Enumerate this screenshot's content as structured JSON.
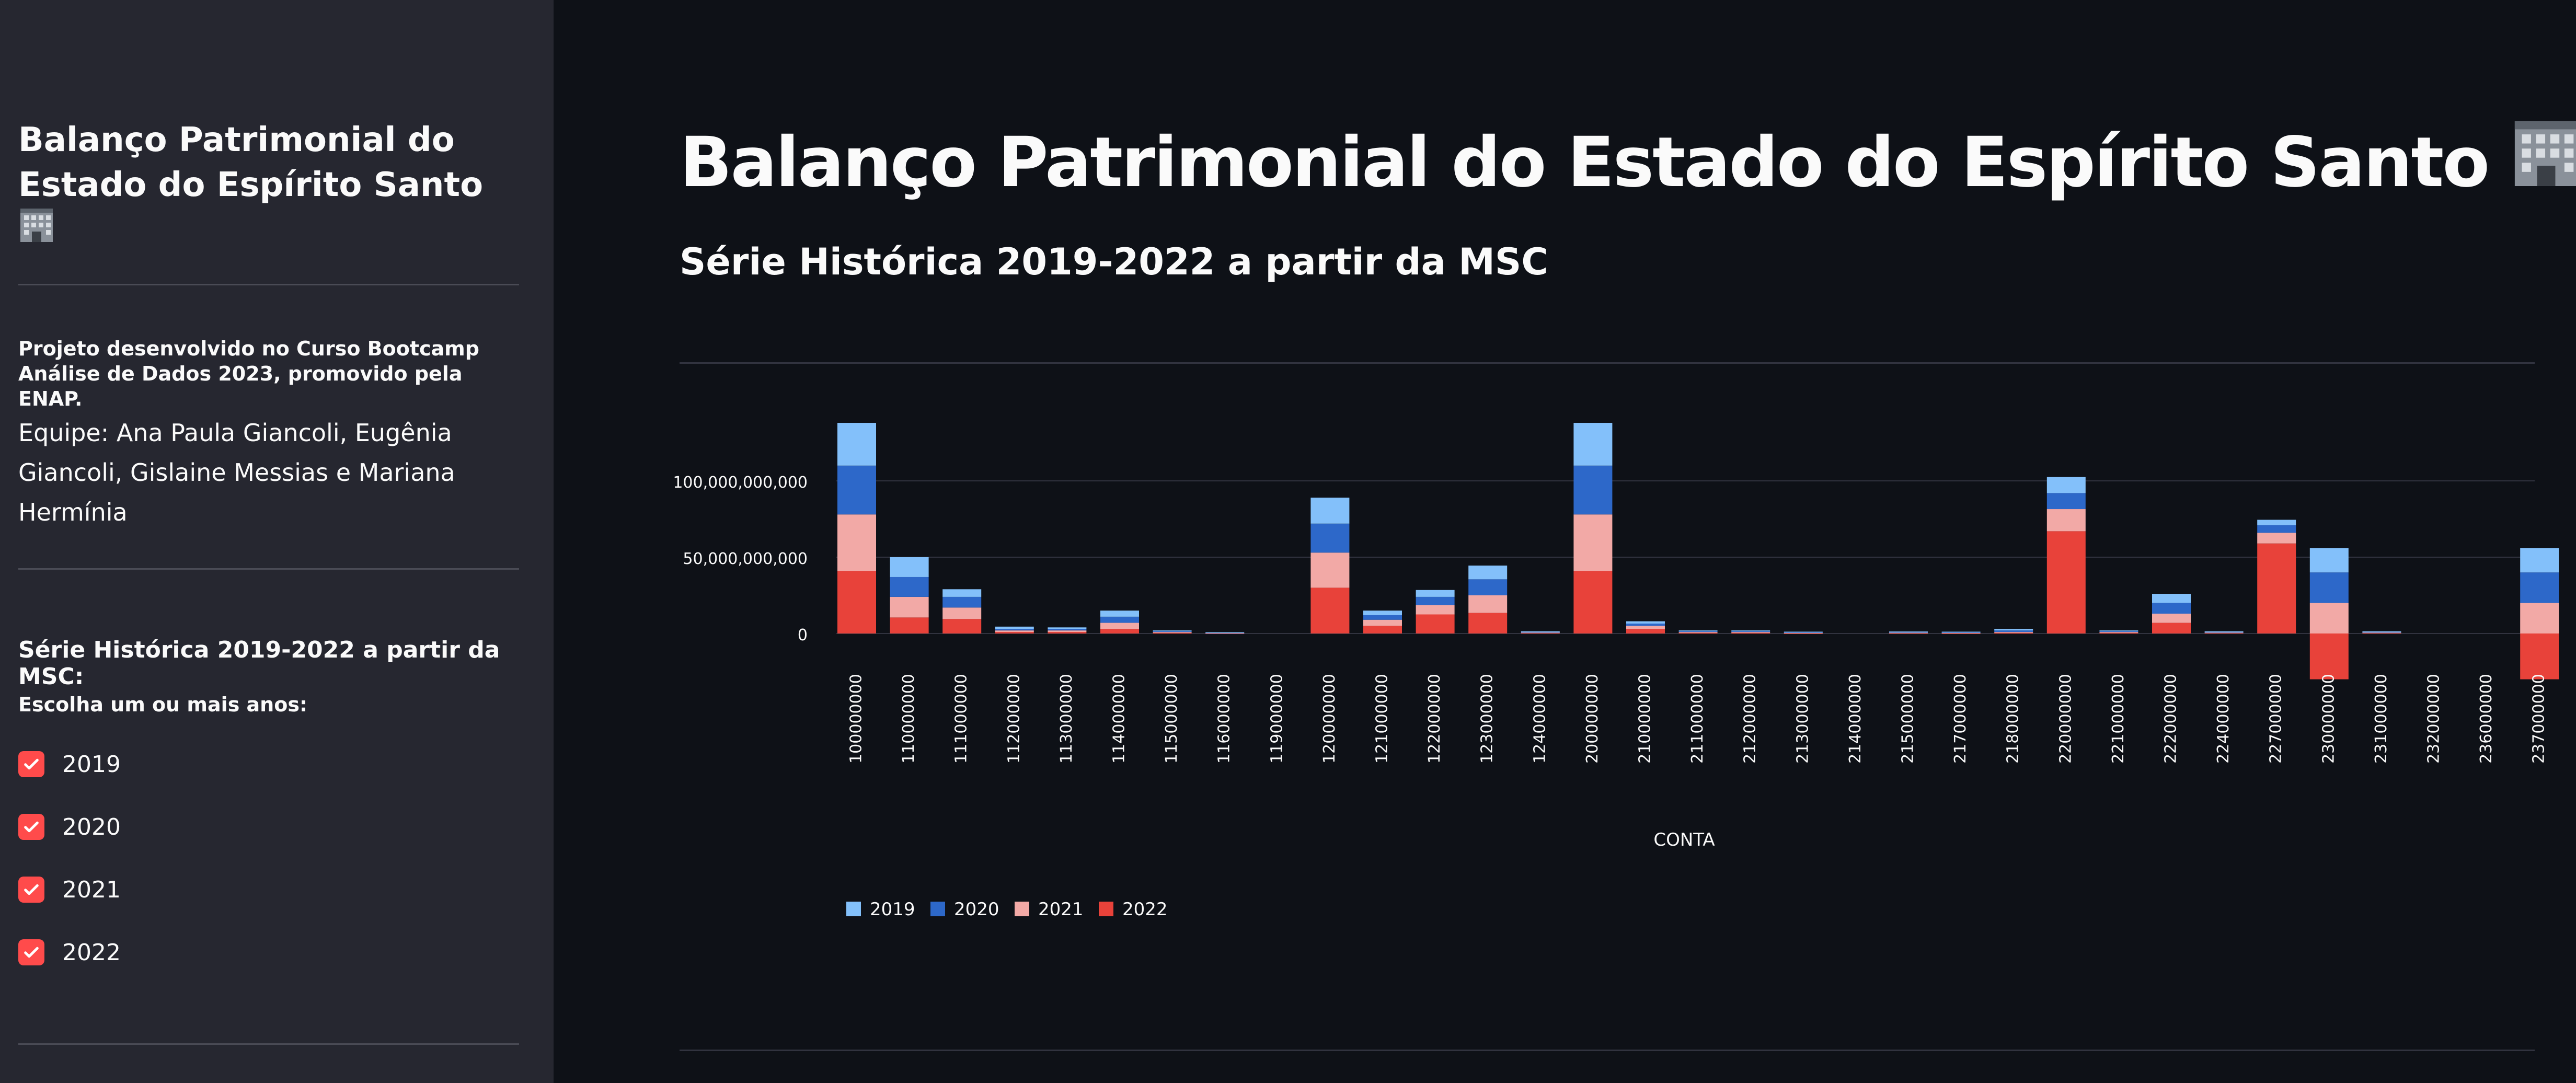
{
  "sidebar": {
    "title": "Balanço Patrimonial do Estado do Espírito Santo",
    "project_text": "Projeto desenvolvido no Curso Bootcamp Análise de Dados 2023, promovido pela ENAP.",
    "team_text": "Equipe: Ana Paula Giancoli, Eugênia Giancoli, Gislaine Messias e Mariana Hermínia",
    "section_label": "Série Histórica 2019-2022 a partir da MSC:",
    "choose_label": "Escolha um ou mais anos:",
    "year_options": [
      {
        "label": "2019",
        "checked": true
      },
      {
        "label": "2020",
        "checked": true
      },
      {
        "label": "2021",
        "checked": true
      },
      {
        "label": "2022",
        "checked": true
      }
    ]
  },
  "main": {
    "title": "Balanço Patrimonial do Estado do Espírito Santo",
    "subtitle": "Série Histórica 2019-2022 a partir da MSC"
  },
  "icons": {
    "title_icon": "office-building-icon",
    "checkbox_icon": "checkmark-icon"
  },
  "colors": {
    "accent": "#ff4b4b",
    "sidebar_bg": "#262730",
    "main_bg": "#0e1117"
  },
  "chart_data": {
    "type": "bar",
    "stacked": true,
    "xlabel": "CONTA",
    "ylabel": "",
    "ylim": [
      -30000000000,
      140000000000
    ],
    "yticks": [
      0,
      50000000000,
      100000000000
    ],
    "ytick_labels": [
      "0",
      "50,000,000,000",
      "100,000,000,000"
    ],
    "legend_position": "bottom-left",
    "grid": true,
    "categories": [
      "100000000",
      "110000000",
      "111000000",
      "112000000",
      "113000000",
      "114000000",
      "115000000",
      "116000000",
      "119000000",
      "120000000",
      "121000000",
      "122000000",
      "123000000",
      "124000000",
      "200000000",
      "210000000",
      "211000000",
      "212000000",
      "213000000",
      "214000000",
      "215000000",
      "217000000",
      "218000000",
      "220000000",
      "221000000",
      "222000000",
      "224000000",
      "227000000",
      "230000000",
      "231000000",
      "232000000",
      "236000000",
      "237000000"
    ],
    "series": [
      {
        "name": "2022",
        "color": "#e8423a",
        "values": [
          41000000000,
          10500000000,
          9500000000,
          1000000000,
          1000000000,
          3000000000,
          500000000,
          200000000,
          0,
          30000000000,
          5000000000,
          12500000000,
          13500000000,
          500000000,
          41000000000,
          3000000000,
          500000000,
          500000000,
          300000000,
          0,
          400000000,
          300000000,
          500000000,
          67000000000,
          500000000,
          7000000000,
          500000000,
          59000000000,
          -30000000000,
          500000000,
          0,
          0,
          -30000000000
        ]
      },
      {
        "name": "2021",
        "color": "#f2a9a6",
        "values": [
          37000000000,
          13500000000,
          7500000000,
          1000000000,
          1000000000,
          4000000000,
          500000000,
          200000000,
          0,
          23000000000,
          4000000000,
          6000000000,
          11500000000,
          300000000,
          37000000000,
          2000000000,
          500000000,
          500000000,
          300000000,
          0,
          300000000,
          300000000,
          500000000,
          14500000000,
          500000000,
          6000000000,
          300000000,
          7000000000,
          20000000000,
          300000000,
          0,
          0,
          20000000000
        ]
      },
      {
        "name": "2020",
        "color": "#2d68c9",
        "values": [
          32000000000,
          13000000000,
          7000000000,
          1000000000,
          1000000000,
          4000000000,
          500000000,
          200000000,
          0,
          19000000000,
          3000000000,
          5500000000,
          10500000000,
          300000000,
          32000000000,
          1500000000,
          500000000,
          500000000,
          300000000,
          0,
          300000000,
          300000000,
          1000000000,
          10500000000,
          500000000,
          7000000000,
          300000000,
          5000000000,
          20000000000,
          300000000,
          0,
          0,
          20000000000
        ]
      },
      {
        "name": "2019",
        "color": "#83c0fa",
        "values": [
          28000000000,
          13000000000,
          5000000000,
          1500000000,
          1000000000,
          4000000000,
          500000000,
          200000000,
          0,
          17000000000,
          3000000000,
          4500000000,
          9000000000,
          300000000,
          28000000000,
          1500000000,
          500000000,
          500000000,
          300000000,
          0,
          300000000,
          300000000,
          1000000000,
          10500000000,
          500000000,
          6000000000,
          300000000,
          3500000000,
          16000000000,
          300000000,
          0,
          0,
          16000000000
        ]
      }
    ]
  }
}
